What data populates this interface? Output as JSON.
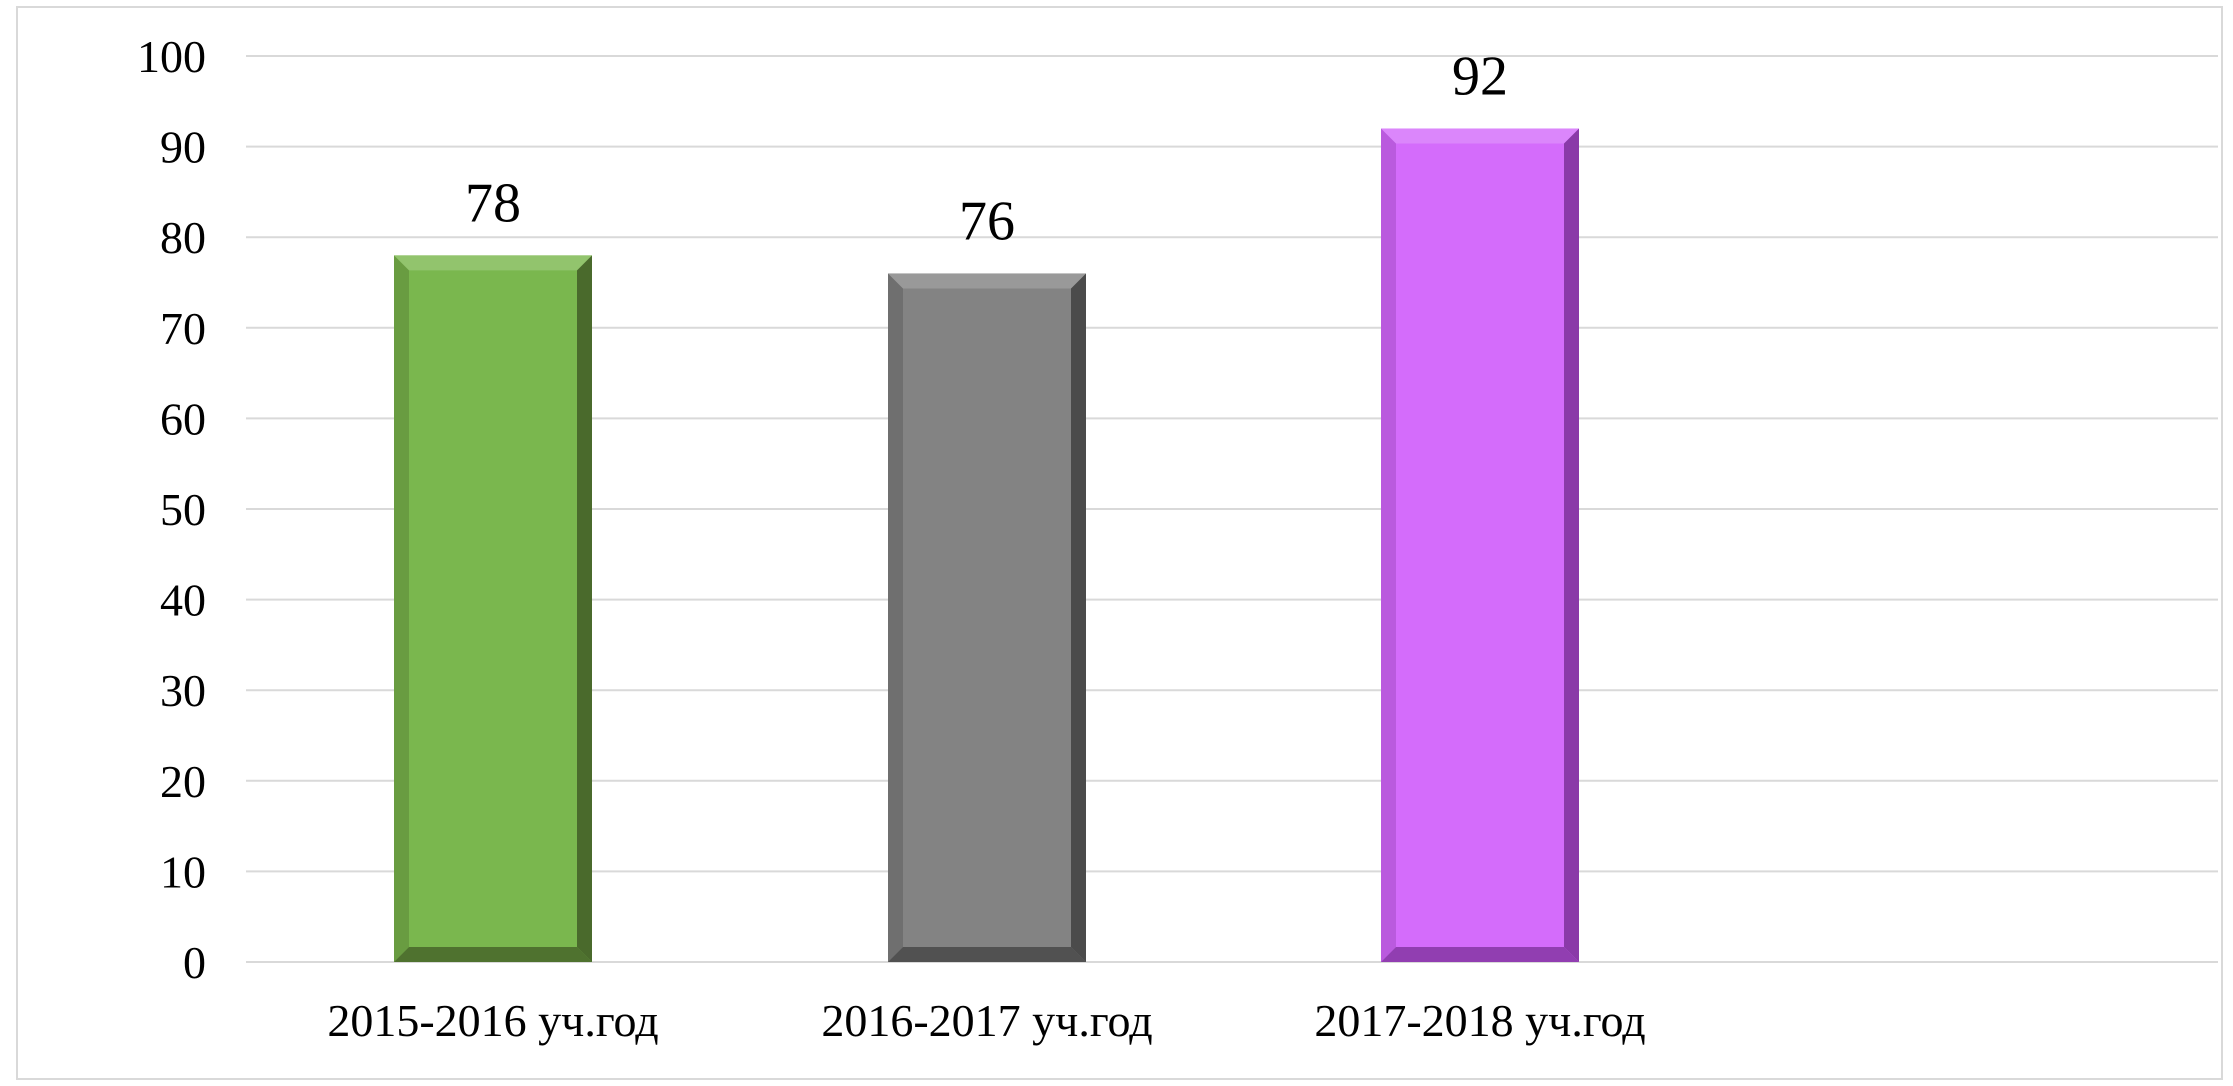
{
  "chart_data": {
    "type": "bar",
    "title": "",
    "xlabel": "",
    "ylabel": "",
    "categories": [
      "2015-2016 уч.год",
      "2016-2017 уч.год",
      "2017-2018 уч.год"
    ],
    "values": [
      78,
      76,
      92
    ],
    "data_labels": [
      "78",
      "76",
      "92"
    ],
    "ylim": [
      0,
      100
    ],
    "yticks": [
      0,
      10,
      20,
      30,
      40,
      50,
      60,
      70,
      80,
      90,
      100
    ],
    "ytick_labels": [
      "0",
      "10",
      "20",
      "30",
      "40",
      "50",
      "60",
      "70",
      "80",
      "90",
      "100"
    ],
    "grid": true,
    "legend": "none",
    "bar_colors": [
      "#7ab74e",
      "#838383",
      "#d46cfb"
    ],
    "bar_shadow_colors": [
      "#4a6a2c",
      "#4b4b4b",
      "#8a3aa8"
    ]
  }
}
